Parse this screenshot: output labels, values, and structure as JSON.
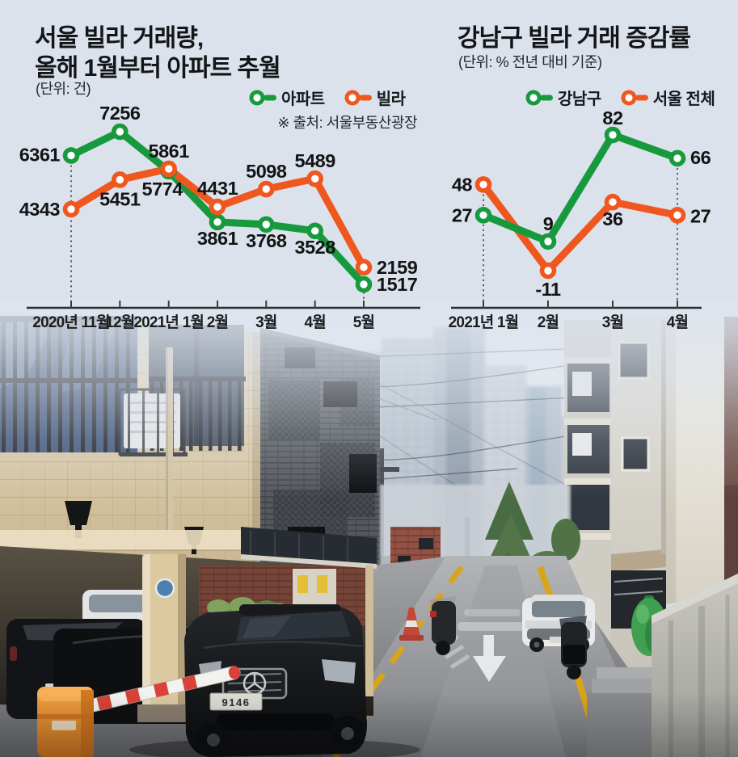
{
  "colors": {
    "green": "#179a3d",
    "orange": "#f0571f",
    "background": "#dbe2ec",
    "ink": "#141517"
  },
  "chart_data": [
    {
      "type": "line",
      "title": "서울 빌라 거래량, 올해 1월부터 아파트 추월",
      "title_lines": [
        "서울 빌라 거래량,",
        "올해 1월부터 아파트 추월"
      ],
      "unit_label": "(단위: 건)",
      "source": "※ 출처: 서울부동산광장",
      "categories": [
        "2020년 11월",
        "12월",
        "2021년 1월",
        "2월",
        "3월",
        "4월",
        "5월"
      ],
      "series": [
        {
          "name": "아파트",
          "color": "#179a3d",
          "values": [
            6361,
            7256,
            5774,
            3861,
            3768,
            3528,
            1517
          ]
        },
        {
          "name": "빌라",
          "color": "#f0571f",
          "values": [
            4343,
            5451,
            5861,
            4431,
            5098,
            5489,
            2159
          ]
        }
      ],
      "ylim": [
        1000,
        7600
      ],
      "grid": false,
      "legend_position": "top-right",
      "guide_category_indexes": [
        0,
        6
      ]
    },
    {
      "type": "line",
      "title": "강남구 빌라 거래 증감률",
      "title_lines": [
        "강남구 빌라 거래 증감률"
      ],
      "unit_label": "(단위: % 전년 대비 기준)",
      "categories": [
        "2021년 1월",
        "2월",
        "3월",
        "4월"
      ],
      "series": [
        {
          "name": "강남구",
          "color": "#179a3d",
          "values": [
            27,
            9,
            82,
            66
          ]
        },
        {
          "name": "서울 전체",
          "color": "#f0571f",
          "values": [
            48,
            -11,
            36,
            27
          ]
        }
      ],
      "ylim": [
        -25,
        95
      ],
      "grid": false,
      "legend_position": "top-center",
      "guide_category_indexes": [
        0,
        3
      ]
    }
  ],
  "photo": {
    "license_plate": "9146"
  }
}
